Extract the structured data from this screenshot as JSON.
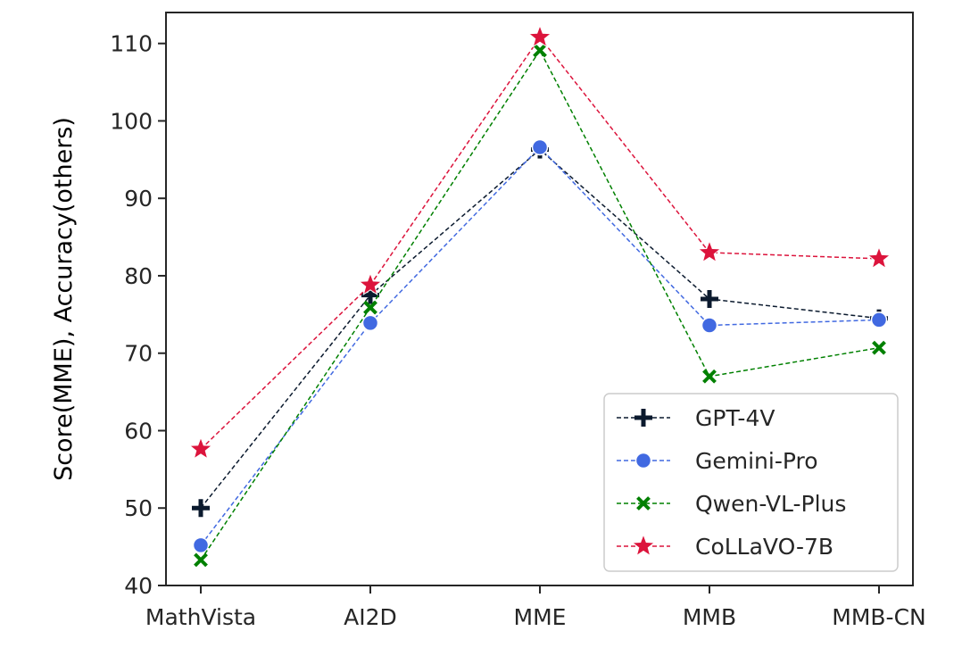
{
  "chart_data": {
    "type": "line",
    "title": "",
    "xlabel": "",
    "ylabel": "Score(MME),  Accuracy(others)",
    "categories": [
      "MathVista",
      "AI2D",
      "MME",
      "MMB",
      "MMB-CN"
    ],
    "yticks": [
      40,
      50,
      60,
      70,
      80,
      90,
      100,
      110
    ],
    "ylim": [
      40,
      114
    ],
    "grid": false,
    "legend_position": "lower-right",
    "series": [
      {
        "name": "GPT-4V",
        "color": "#0b1a2e",
        "marker": "plus",
        "values": [
          50.0,
          77.5,
          96.3,
          77.0,
          74.5
        ]
      },
      {
        "name": "Gemini-Pro",
        "color": "#4169e1",
        "marker": "circle",
        "values": [
          45.2,
          73.9,
          96.6,
          73.6,
          74.3
        ]
      },
      {
        "name": "Qwen-VL-Plus",
        "color": "#008000",
        "marker": "x",
        "values": [
          43.3,
          75.9,
          109.1,
          67.0,
          70.7
        ]
      },
      {
        "name": "CoLLaVO-7B",
        "color": "#dc143c",
        "marker": "star",
        "values": [
          57.6,
          78.8,
          110.8,
          83.0,
          82.2
        ]
      }
    ]
  }
}
